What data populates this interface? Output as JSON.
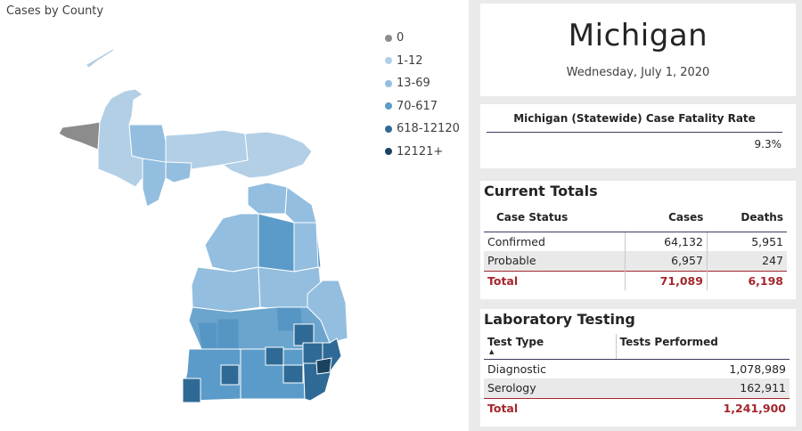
{
  "map": {
    "title": "Cases by County",
    "legend": [
      {
        "label": "0",
        "color": "#8c8c8c"
      },
      {
        "label": "1-12",
        "color": "#b2cfe6"
      },
      {
        "label": "13-69",
        "color": "#93bedf"
      },
      {
        "label": "70-617",
        "color": "#5b9bc9"
      },
      {
        "label": "618-12120",
        "color": "#2e6a95"
      },
      {
        "label": "12121+",
        "color": "#1b4361"
      }
    ],
    "colors": {
      "gray": "#8c8c8c",
      "light": "#b2cfe6",
      "lightmid": "#93bedf",
      "mid": "#5b9bc9",
      "dark": "#2e6a95",
      "darkest": "#1b4361"
    }
  },
  "header": {
    "state": "Michigan",
    "date": "Wednesday, July 1, 2020"
  },
  "cfr": {
    "label": "Michigan (Statewide) Case Fatality Rate",
    "value": "9.3%"
  },
  "totals": {
    "title": "Current Totals",
    "columns": [
      "Case Status",
      "Cases",
      "Deaths"
    ],
    "rows": [
      [
        "Confirmed",
        "64,132",
        "5,951"
      ],
      [
        "Probable",
        "6,957",
        "247"
      ]
    ],
    "total": [
      "Total",
      "71,089",
      "6,198"
    ]
  },
  "lab": {
    "title": "Laboratory Testing",
    "columns": [
      "Test Type",
      "Tests Performed"
    ],
    "rows": [
      [
        "Diagnostic",
        "1,078,989"
      ],
      [
        "Serology",
        "162,911"
      ]
    ],
    "total": [
      "Total",
      "1,241,900"
    ]
  }
}
